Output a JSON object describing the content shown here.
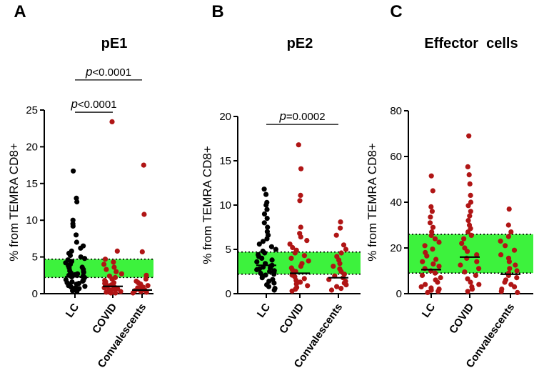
{
  "chart_data": [
    {
      "type": "scatter",
      "panel": "A",
      "title": "pE1",
      "ylabel": "% from TEMRA CD8+",
      "ylim": [
        0,
        25
      ],
      "yticks": [
        0,
        5,
        10,
        15,
        20,
        25
      ],
      "categories": [
        "LC",
        "COVID",
        "Convalescents"
      ],
      "reference_band": [
        2.2,
        4.7
      ],
      "series": [
        {
          "name": "LC",
          "color": "#000000",
          "median": 2.3,
          "values": [
            16.7,
            13.0,
            12.5,
            10.0,
            9.5,
            9.2,
            8.0,
            7.0,
            6.5,
            6.2,
            5.8,
            5.5,
            5.2,
            5.0,
            4.8,
            4.6,
            4.4,
            4.2,
            4.0,
            3.8,
            3.6,
            3.5,
            3.3,
            3.1,
            3.0,
            2.9,
            2.8,
            2.7,
            2.6,
            2.5,
            2.4,
            2.3,
            2.2,
            2.1,
            2.0,
            1.9,
            1.8,
            1.7,
            1.6,
            1.5,
            1.4,
            1.3,
            1.2,
            1.1,
            1.0,
            0.9,
            0.8,
            0.7,
            0.6,
            0.5,
            0.4,
            0.3
          ]
        },
        {
          "name": "COVID",
          "color": "#b01515",
          "median": 1.0,
          "values": [
            23.4,
            5.8,
            4.7,
            4.3,
            4.0,
            3.6,
            3.3,
            3.0,
            2.7,
            2.4,
            2.2,
            2.0,
            1.8,
            1.6,
            1.5,
            1.4,
            1.3,
            1.2,
            1.1,
            1.0,
            0.9,
            0.8,
            0.7,
            0.6,
            0.5,
            0.4,
            0.3,
            0.2,
            0.1,
            0.1
          ]
        },
        {
          "name": "Convalescents",
          "color": "#b01515",
          "median": 0.5,
          "values": [
            17.5,
            10.8,
            5.7,
            2.5,
            2.0,
            1.7,
            1.5,
            1.3,
            1.1,
            0.9,
            0.8,
            0.7,
            0.6,
            0.5,
            0.4,
            0.3,
            0.2,
            0.1
          ]
        }
      ],
      "comparisons": [
        {
          "from": "LC",
          "to": "COVID",
          "label": "<0.0001",
          "y": 24.7
        },
        {
          "from": "LC",
          "to": "Convalescents",
          "label": "<0.0001",
          "y": 29.1
        }
      ]
    },
    {
      "type": "scatter",
      "panel": "B",
      "title": "pE2",
      "ylabel": "% from TEMRA CD8+",
      "ylim": [
        0,
        20
      ],
      "yticks": [
        0,
        5,
        10,
        15,
        20
      ],
      "categories": [
        "LC",
        "COVID",
        "Convalescents"
      ],
      "reference_band": [
        2.2,
        4.7
      ],
      "series": [
        {
          "name": "LC",
          "color": "#000000",
          "median": 3.2,
          "values": [
            11.8,
            11.2,
            10.3,
            10.0,
            9.5,
            9.0,
            8.5,
            8.0,
            7.5,
            7.0,
            6.6,
            6.2,
            5.9,
            5.6,
            5.3,
            5.0,
            4.8,
            4.6,
            4.4,
            4.2,
            4.0,
            3.8,
            3.6,
            3.4,
            3.2,
            3.1,
            3.0,
            2.9,
            2.8,
            2.7,
            2.6,
            2.5,
            2.4,
            2.3,
            2.2,
            2.1,
            2.0,
            1.8,
            1.6,
            1.4,
            1.2,
            1.0,
            0.8,
            0.6,
            0.4
          ]
        },
        {
          "name": "COVID",
          "color": "#b01515",
          "median": 2.3,
          "values": [
            16.8,
            14.1,
            11.1,
            10.5,
            7.5,
            6.8,
            6.4,
            6.0,
            5.6,
            5.2,
            4.9,
            4.6,
            4.3,
            4.0,
            3.7,
            3.4,
            3.1,
            2.9,
            2.7,
            2.5,
            2.3,
            2.1,
            1.9,
            1.7,
            1.5,
            1.3,
            1.1,
            0.9,
            0.7,
            0.5,
            0.3
          ]
        },
        {
          "name": "Convalescents",
          "color": "#b01515",
          "median": 1.8,
          "values": [
            8.1,
            7.4,
            6.6,
            5.5,
            5.0,
            4.6,
            4.2,
            3.8,
            3.4,
            3.1,
            2.8,
            2.5,
            2.2,
            2.0,
            1.8,
            1.6,
            1.4,
            1.2,
            1.0,
            0.8,
            0.6,
            0.4
          ]
        }
      ],
      "comparisons": [
        {
          "from": "LC",
          "to": "Convalescents",
          "label": "0.0002",
          "y": 19.1
        }
      ]
    },
    {
      "type": "scatter",
      "panel": "C",
      "title": "Effector  cells",
      "ylabel": "% from TEMRA CD8+",
      "ylim": [
        0,
        80
      ],
      "yticks": [
        0,
        20,
        40,
        60,
        80
      ],
      "categories": [
        "LC",
        "COVID",
        "Convalescents"
      ],
      "reference_band": [
        9,
        26
      ],
      "series": [
        {
          "name": "LC",
          "color": "#b01515",
          "median": 10.5,
          "values": [
            51.5,
            45.0,
            38.0,
            36.0,
            33.5,
            31.0,
            29.0,
            27.0,
            25.5,
            24.0,
            22.5,
            21.0,
            19.5,
            18.0,
            16.5,
            15.0,
            14.0,
            13.0,
            12.0,
            11.0,
            10.0,
            9.0,
            8.0,
            7.0,
            6.0,
            5.0,
            4.0,
            3.0,
            2.5,
            2.0,
            1.5,
            1.0,
            0.5
          ]
        },
        {
          "name": "COVID",
          "color": "#b01515",
          "median": 16.0,
          "values": [
            69.0,
            55.5,
            52.0,
            48.0,
            43.0,
            40.0,
            38.5,
            36.0,
            34.0,
            32.0,
            30.0,
            28.5,
            27.0,
            25.5,
            24.0,
            22.0,
            20.0,
            18.5,
            17.0,
            15.5,
            14.0,
            12.5,
            11.0,
            9.5,
            8.0,
            6.5,
            5.0,
            4.0,
            3.0,
            2.0,
            1.0
          ]
        },
        {
          "name": "Convalescents",
          "color": "#b01515",
          "median": 8.5,
          "values": [
            37.0,
            30.0,
            27.0,
            25.0,
            23.0,
            21.0,
            19.0,
            17.0,
            15.5,
            14.0,
            12.5,
            11.0,
            10.0,
            9.0,
            8.0,
            7.0,
            6.0,
            5.0,
            4.0,
            3.0,
            2.0,
            1.0,
            0.5
          ]
        }
      ],
      "comparisons": []
    }
  ]
}
